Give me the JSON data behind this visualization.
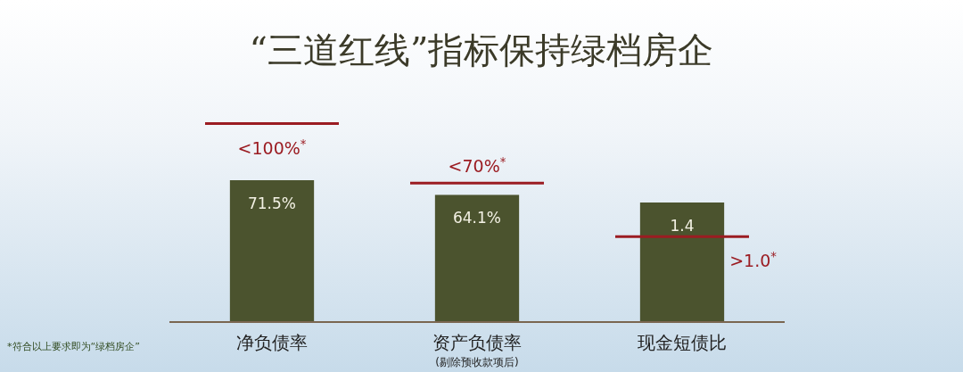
{
  "chart_data": {
    "type": "bar",
    "title": "“三道红线”指标保持绿档房企",
    "categories": [
      "净负债率",
      "资产负债率$_{(剔除预收款项后)}$",
      "现金短债比"
    ],
    "series": [
      {
        "color": "#4b532e",
        "values": [
          71.5,
          64.1,
          null
        ],
        "value_labels": [
          "71.5%",
          "64.1%",
          null
        ]
      },
      {
        "color": "#4b532e",
        "values": [
          null,
          null,
          1.4
        ],
        "value_labels": [
          null,
          null,
          "1.4"
        ],
        "axis": "y2"
      }
    ],
    "tick_labels": false,
    "ref_lines": [
      {
        "axis": "y",
        "value": 100,
        "label": "<100%$^{*}$",
        "color": "#9b1c22"
      },
      {
        "axis": "y",
        "value": 70,
        "label": "<70%$^{*}$",
        "color": "#9b1c22"
      },
      {
        "axis": "y2",
        "value": 1.0,
        "label": ">1.0$^{*}$",
        "color": "#9b1c22"
      }
    ],
    "annotations": [
      "*符合以上要求即为“绿档房企”"
    ]
  }
}
